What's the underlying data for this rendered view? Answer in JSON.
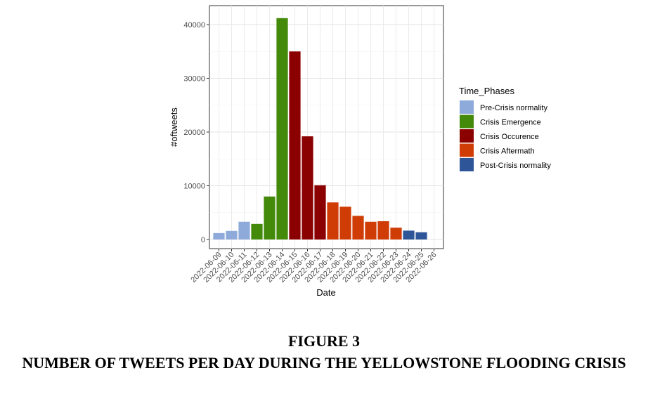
{
  "chart_data": {
    "type": "bar",
    "xlabel": "Date",
    "ylabel": "#oftweets",
    "ylim": [
      0,
      43000
    ],
    "yticks": [
      0,
      10000,
      20000,
      30000,
      40000
    ],
    "grid": true,
    "legend_placement": "right",
    "legend_title": "Time_Phases",
    "phases": [
      {
        "name": "Pre-Crisis normality",
        "color": "#8eaadb"
      },
      {
        "name": "Crisis Emergence",
        "color": "#448a0a"
      },
      {
        "name": "Crisis Occurence",
        "color": "#8b0000"
      },
      {
        "name": "Crisis Aftermath",
        "color": "#d03c06"
      },
      {
        "name": "Post-Crisis normality",
        "color": "#2e5597"
      }
    ],
    "categories": [
      "2022-06-09",
      "2022-06-10",
      "2022-06-11",
      "2022-06-12",
      "2022-06-13",
      "2022-06-14",
      "2022-06-15",
      "2022-06-16",
      "2022-06-17",
      "2022-06-18",
      "2022-06-19",
      "2022-06-20",
      "2022-06-21",
      "2022-06-22",
      "2022-06-23",
      "2022-06-24",
      "2022-06-25",
      "2022-06-26"
    ],
    "bars": [
      {
        "x": "2022-06-09",
        "value": 1200,
        "phase": 0
      },
      {
        "x": "2022-06-10",
        "value": 1600,
        "phase": 0
      },
      {
        "x": "2022-06-11",
        "value": 3300,
        "phase": 0
      },
      {
        "x": "2022-06-12",
        "value": 2900,
        "phase": 1
      },
      {
        "x": "2022-06-13",
        "value": 8000,
        "phase": 1
      },
      {
        "x": "2022-06-14",
        "value": 41200,
        "phase": 1
      },
      {
        "x": "2022-06-15",
        "value": 35000,
        "phase": 2
      },
      {
        "x": "2022-06-16",
        "value": 19200,
        "phase": 2
      },
      {
        "x": "2022-06-17",
        "value": 10100,
        "phase": 2
      },
      {
        "x": "2022-06-18",
        "value": 6900,
        "phase": 3
      },
      {
        "x": "2022-06-19",
        "value": 6100,
        "phase": 3
      },
      {
        "x": "2022-06-20",
        "value": 4400,
        "phase": 3
      },
      {
        "x": "2022-06-21",
        "value": 3300,
        "phase": 3
      },
      {
        "x": "2022-06-22",
        "value": 3400,
        "phase": 3
      },
      {
        "x": "2022-06-23",
        "value": 2200,
        "phase": 3
      },
      {
        "x": "2022-06-24",
        "value": 1650,
        "phase": 4
      },
      {
        "x": "2022-06-25",
        "value": 1350,
        "phase": 4
      }
    ]
  },
  "caption": {
    "figure_number": "FIGURE 3",
    "title": "NUMBER OF TWEETS PER DAY DURING THE YELLOWSTONE FLOODING CRISIS"
  }
}
